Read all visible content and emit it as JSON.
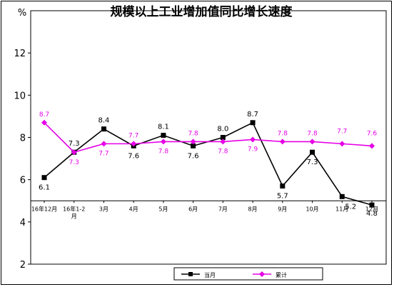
{
  "chart_data": {
    "type": "line",
    "title": "规模以上工业增加值同比增长速度",
    "ylabel": "%",
    "ylim": [
      2,
      14
    ],
    "yticks": [
      "2",
      "4",
      "6",
      "8",
      "10",
      "12"
    ],
    "categories": [
      "16年12月",
      "16年1-2月",
      "3月",
      "4月",
      "5月",
      "6月",
      "7月",
      "8月",
      "9月",
      "10月",
      "11月",
      "12月"
    ],
    "baseline": 5,
    "grid": false,
    "legend_position": "bottom",
    "series": [
      {
        "name": "当月",
        "color": "#000000",
        "marker": "square",
        "values": [
          6.1,
          7.3,
          8.4,
          7.6,
          8.1,
          7.6,
          8.0,
          8.7,
          5.7,
          7.3,
          5.2,
          4.8
        ],
        "labels": [
          "6.1",
          "7.3",
          "8.4",
          "7.6",
          "8.1",
          "7.6",
          "8.0",
          "8.7",
          "5.7",
          "7.3",
          "5.2",
          "4.8"
        ]
      },
      {
        "name": "累计",
        "color": "#e600e6",
        "marker": "diamond",
        "values": [
          8.7,
          7.3,
          7.7,
          7.7,
          7.8,
          7.8,
          7.8,
          7.9,
          7.8,
          7.8,
          7.7,
          7.6
        ],
        "labels": [
          "8.7",
          "7.3",
          "7.7",
          "7.7",
          "7.8",
          "7.8",
          "7.8",
          "7.9",
          "7.8",
          "7.8",
          "7.7",
          "7.6"
        ]
      }
    ]
  }
}
